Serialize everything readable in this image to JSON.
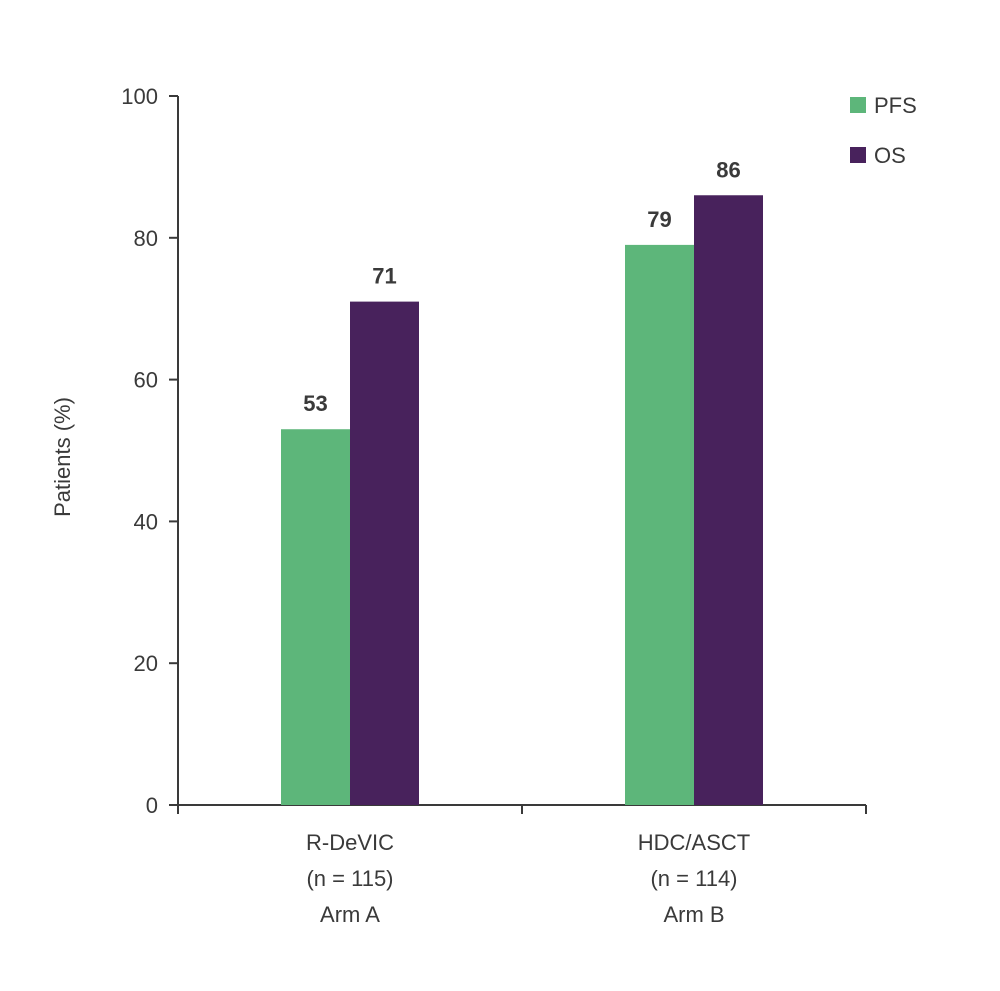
{
  "chart_data": {
    "type": "bar",
    "ylabel": "Patients (%)",
    "xlabel": "",
    "ylim": [
      0,
      100
    ],
    "yticks": [
      0,
      20,
      40,
      60,
      80,
      100
    ],
    "categories": [
      [
        "R-DeVIC",
        "(n = 115)",
        "Arm A"
      ],
      [
        "HDC/ASCT",
        "(n = 114)",
        "Arm B"
      ]
    ],
    "series": [
      {
        "name": "PFS",
        "color": "#5db67a",
        "values": [
          53,
          79
        ]
      },
      {
        "name": "OS",
        "color": "#48225c",
        "values": [
          71,
          86
        ]
      }
    ],
    "data_labels": true,
    "legend_position": "top-right",
    "grid": false
  }
}
